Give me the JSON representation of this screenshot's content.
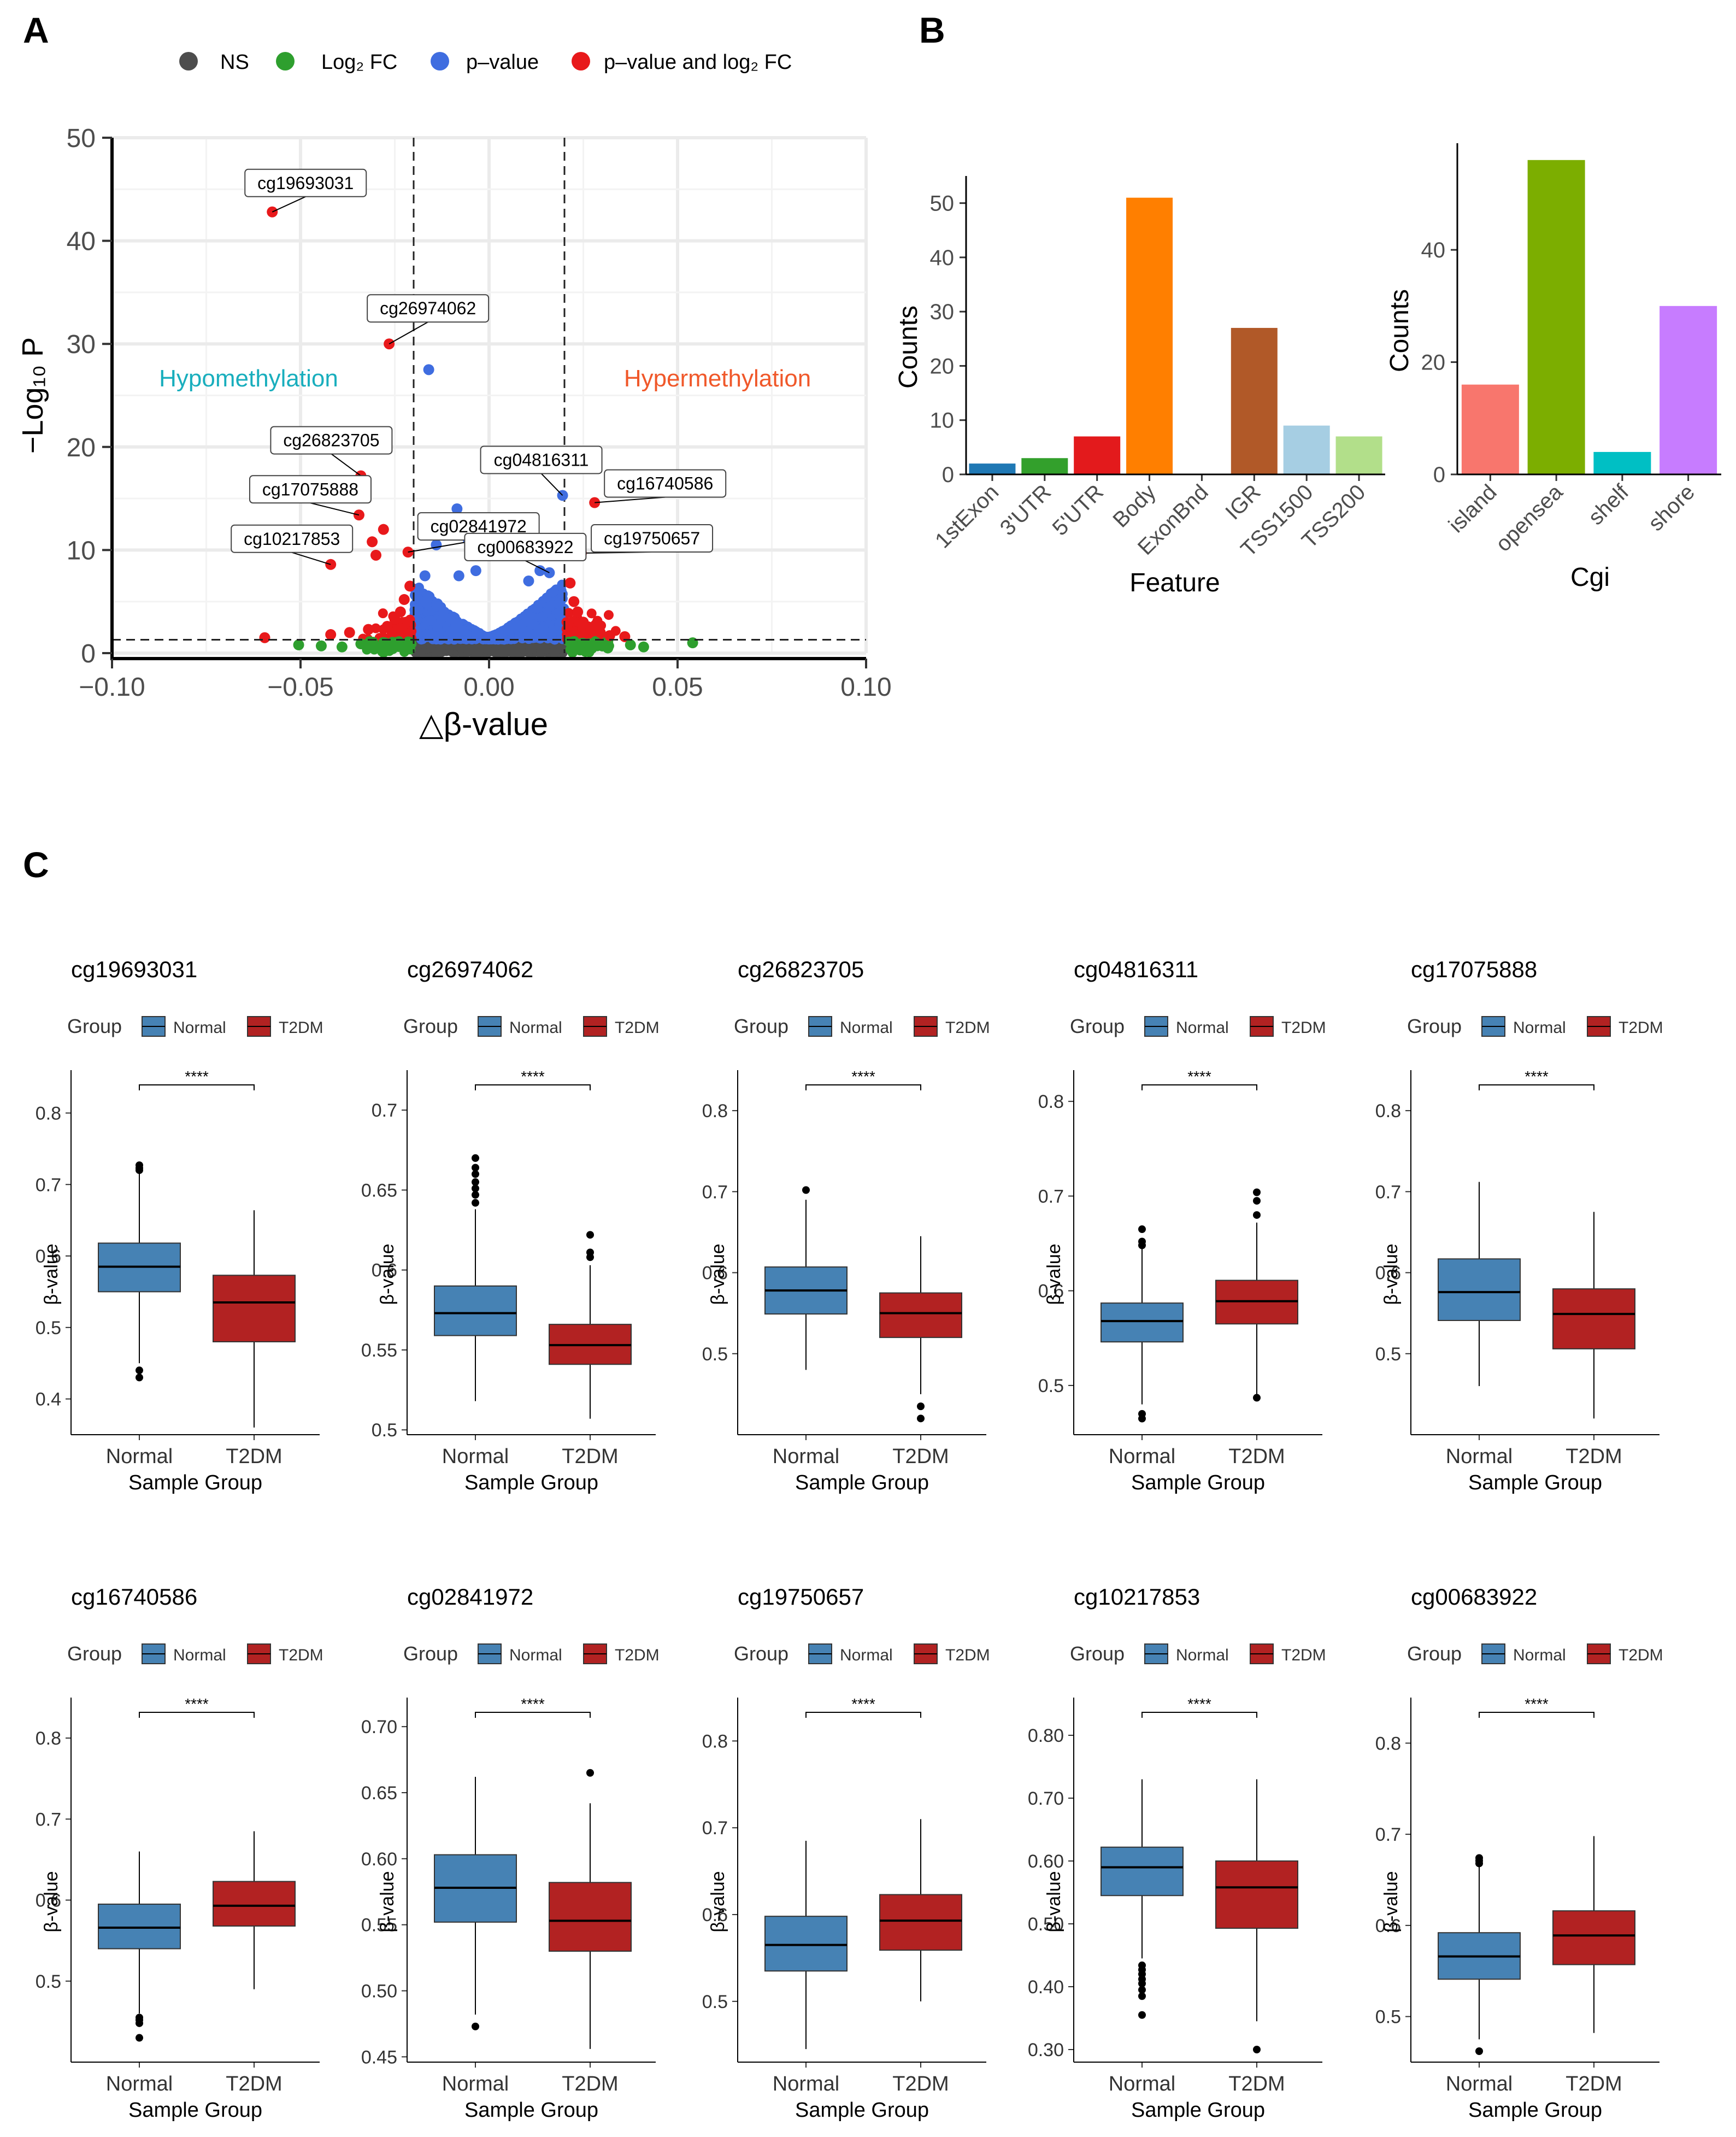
{
  "panel_letters": [
    "A",
    "B",
    "C"
  ],
  "volcano": {
    "legend": [
      "NS",
      "Log₂ FC",
      "p–value",
      "p–value and log₂ FC"
    ],
    "legend_colors": [
      "#4d4d4d",
      "#2e9f2e",
      "#3f6de0",
      "#e8191b"
    ],
    "hypo_label": "Hypomethylation",
    "hyper_label": "Hypermethylation",
    "hypo_color": "#19aebd",
    "hyper_color": "#f0582a"
  },
  "chart_data": [
    {
      "type": "scatter",
      "id": "A",
      "title": "",
      "xlabel": "△β-value",
      "ylabel": "−Log₁₀ P",
      "xlim": [
        -0.1,
        0.1
      ],
      "ylim": [
        0,
        50
      ],
      "xticks": [
        -0.1,
        -0.05,
        0.0,
        0.05,
        0.1
      ],
      "xtick_labels": [
        "−0.10",
        "−0.05",
        "0.00",
        "0.05",
        "0.10"
      ],
      "yticks": [
        0,
        10,
        20,
        30,
        40,
        50
      ],
      "cutoffs": {
        "x": [
          -0.02,
          0.02
        ],
        "y": 1.3
      },
      "labeled_points": [
        {
          "name": "cg19693031",
          "x": -0.0575,
          "y": 42.8,
          "color": "#e8191b"
        },
        {
          "name": "cg26974062",
          "x": -0.0265,
          "y": 30.0,
          "color": "#e8191b"
        },
        {
          "name": "cg26823705",
          "x": -0.034,
          "y": 17.2,
          "color": "#e8191b"
        },
        {
          "name": "cg04816311",
          "x": 0.0195,
          "y": 15.3,
          "color": "#3f6de0"
        },
        {
          "name": "cg16740586",
          "x": 0.028,
          "y": 14.6,
          "color": "#e8191b"
        },
        {
          "name": "cg17075888",
          "x": -0.0345,
          "y": 13.4,
          "color": "#e8191b"
        },
        {
          "name": "cg02841972",
          "x": -0.0215,
          "y": 9.8,
          "color": "#e8191b"
        },
        {
          "name": "cg19750657",
          "x": 0.0245,
          "y": 9.7,
          "color": "#e8191b"
        },
        {
          "name": "cg10217853",
          "x": -0.042,
          "y": 8.6,
          "color": "#e8191b"
        },
        {
          "name": "cg00683922",
          "x": 0.016,
          "y": 7.8,
          "color": "#3f6de0"
        }
      ],
      "other_points": [
        {
          "x": -0.0085,
          "y": 14.0,
          "color": "#3f6de0"
        },
        {
          "x": 0.0075,
          "y": 13.0,
          "color": "#3f6de0"
        },
        {
          "x": -0.016,
          "y": 27.5,
          "color": "#3f6de0"
        },
        {
          "x": -0.014,
          "y": 10.5,
          "color": "#3f6de0"
        },
        {
          "x": -0.0055,
          "y": 11.0,
          "color": "#3f6de0"
        },
        {
          "x": 0.007,
          "y": 10.0,
          "color": "#3f6de0"
        },
        {
          "x": 0.0135,
          "y": 8.0,
          "color": "#3f6de0"
        },
        {
          "x": -0.008,
          "y": 7.5,
          "color": "#3f6de0"
        },
        {
          "x": -0.0035,
          "y": 8.0,
          "color": "#3f6de0"
        },
        {
          "x": -0.017,
          "y": 7.5,
          "color": "#3f6de0"
        },
        {
          "x": 0.0105,
          "y": 7.0,
          "color": "#3f6de0"
        },
        {
          "x": -0.0595,
          "y": 1.5,
          "color": "#e8191b"
        },
        {
          "x": -0.028,
          "y": 12.0,
          "color": "#e8191b"
        },
        {
          "x": -0.031,
          "y": 10.8,
          "color": "#e8191b"
        },
        {
          "x": -0.03,
          "y": 9.5,
          "color": "#e8191b"
        },
        {
          "x": -0.027,
          "y": 2.6,
          "color": "#e8191b"
        },
        {
          "x": -0.025,
          "y": 3.3,
          "color": "#e8191b"
        },
        {
          "x": -0.0235,
          "y": 4.0,
          "color": "#e8191b"
        },
        {
          "x": -0.0225,
          "y": 5.2,
          "color": "#e8191b"
        },
        {
          "x": -0.021,
          "y": 6.5,
          "color": "#e8191b"
        },
        {
          "x": -0.022,
          "y": 3.0,
          "color": "#e8191b"
        },
        {
          "x": -0.0235,
          "y": 2.4,
          "color": "#e8191b"
        },
        {
          "x": -0.032,
          "y": 2.3,
          "color": "#e8191b"
        },
        {
          "x": -0.037,
          "y": 2.0,
          "color": "#e8191b"
        },
        {
          "x": -0.042,
          "y": 1.8,
          "color": "#e8191b"
        },
        {
          "x": 0.0215,
          "y": 6.8,
          "color": "#e8191b"
        },
        {
          "x": 0.0225,
          "y": 5.0,
          "color": "#e8191b"
        },
        {
          "x": 0.0235,
          "y": 4.0,
          "color": "#e8191b"
        },
        {
          "x": 0.025,
          "y": 3.0,
          "color": "#e8191b"
        },
        {
          "x": 0.027,
          "y": 2.3,
          "color": "#e8191b"
        },
        {
          "x": 0.0295,
          "y": 2.0,
          "color": "#e8191b"
        },
        {
          "x": 0.032,
          "y": 1.7,
          "color": "#e8191b"
        },
        {
          "x": 0.036,
          "y": 1.6,
          "color": "#e8191b"
        },
        {
          "x": -0.0505,
          "y": 0.8,
          "color": "#2e9f2e"
        },
        {
          "x": -0.0445,
          "y": 0.7,
          "color": "#2e9f2e"
        },
        {
          "x": -0.039,
          "y": 0.6,
          "color": "#2e9f2e"
        },
        {
          "x": -0.034,
          "y": 0.9,
          "color": "#2e9f2e"
        },
        {
          "x": -0.029,
          "y": 0.6,
          "color": "#2e9f2e"
        },
        {
          "x": -0.025,
          "y": 0.8,
          "color": "#2e9f2e"
        },
        {
          "x": -0.022,
          "y": 0.5,
          "color": "#2e9f2e"
        },
        {
          "x": 0.0225,
          "y": 0.6,
          "color": "#2e9f2e"
        },
        {
          "x": 0.0265,
          "y": 0.9,
          "color": "#2e9f2e"
        },
        {
          "x": 0.0315,
          "y": 0.5,
          "color": "#2e9f2e"
        },
        {
          "x": 0.0375,
          "y": 0.8,
          "color": "#2e9f2e"
        },
        {
          "x": 0.041,
          "y": 0.6,
          "color": "#2e9f2e"
        },
        {
          "x": 0.054,
          "y": 1.0,
          "color": "#2e9f2e"
        }
      ]
    },
    {
      "type": "bar",
      "id": "B1",
      "xlabel": "Feature",
      "ylabel": "Counts",
      "ylim": [
        0,
        55
      ],
      "yticks": [
        0,
        10,
        20,
        30,
        40,
        50
      ],
      "categories": [
        "1stExon",
        "3'UTR",
        "5'UTR",
        "Body",
        "ExonBnd",
        "IGR",
        "TSS1500",
        "TSS200"
      ],
      "values": [
        2,
        3,
        7,
        51,
        0,
        27,
        9,
        7
      ],
      "colors": [
        "#1f78b4",
        "#33a02c",
        "#e31a1c",
        "#ff7f00",
        "#6a3d9a",
        "#b15928",
        "#a6cee3",
        "#b2df8a"
      ]
    },
    {
      "type": "bar",
      "id": "B2",
      "xlabel": "Cgi",
      "ylabel": "Counts",
      "ylim": [
        0,
        59
      ],
      "yticks": [
        0,
        20,
        40
      ],
      "categories": [
        "island",
        "opensea",
        "shelf",
        "shore"
      ],
      "values": [
        16,
        56,
        4,
        30
      ],
      "colors": [
        "#f8766d",
        "#7cae00",
        "#00bfc4",
        "#c77cff"
      ]
    },
    {
      "type": "box",
      "id": "C",
      "group_title": "Group",
      "groups": [
        "Normal",
        "T2DM"
      ],
      "group_colors": [
        "#4682b4",
        "#b22222"
      ],
      "xlabel": "Sample Group",
      "ylabel": "β-value",
      "significance": "****",
      "panels": [
        {
          "title": "cg19693031",
          "ylim": [
            0.35,
            0.86
          ],
          "yticks": [
            0.4,
            0.5,
            0.6,
            0.7,
            0.8
          ],
          "boxes": [
            {
              "q1": 0.55,
              "median": 0.585,
              "q3": 0.618,
              "wlo": 0.45,
              "whi": 0.718,
              "outliers": [
                0.43,
                0.44,
                0.72,
                0.723,
                0.727
              ]
            },
            {
              "q1": 0.48,
              "median": 0.535,
              "q3": 0.573,
              "wlo": 0.36,
              "whi": 0.664,
              "outliers": []
            }
          ]
        },
        {
          "title": "cg26974062",
          "ylim": [
            0.497,
            0.725
          ],
          "yticks": [
            0.5,
            0.55,
            0.6,
            0.65,
            0.7
          ],
          "boxes": [
            {
              "q1": 0.559,
              "median": 0.573,
              "q3": 0.59,
              "wlo": 0.518,
              "whi": 0.638,
              "outliers": [
                0.642,
                0.647,
                0.651,
                0.655,
                0.66,
                0.664,
                0.67
              ]
            },
            {
              "q1": 0.541,
              "median": 0.553,
              "q3": 0.566,
              "wlo": 0.507,
              "whi": 0.603,
              "outliers": [
                0.608,
                0.611,
                0.622
              ]
            }
          ]
        },
        {
          "title": "cg26823705",
          "ylim": [
            0.4,
            0.85
          ],
          "yticks": [
            0.5,
            0.6,
            0.7,
            0.8
          ],
          "boxes": [
            {
              "q1": 0.549,
              "median": 0.578,
              "q3": 0.607,
              "wlo": 0.48,
              "whi": 0.69,
              "outliers": [
                0.702
              ]
            },
            {
              "q1": 0.52,
              "median": 0.55,
              "q3": 0.575,
              "wlo": 0.45,
              "whi": 0.645,
              "outliers": [
                0.42,
                0.435
              ]
            }
          ]
        },
        {
          "title": "cg04816311",
          "ylim": [
            0.448,
            0.833
          ],
          "yticks": [
            0.5,
            0.6,
            0.7,
            0.8
          ],
          "boxes": [
            {
              "q1": 0.546,
              "median": 0.568,
              "q3": 0.587,
              "wlo": 0.48,
              "whi": 0.645,
              "outliers": [
                0.465,
                0.47,
                0.648,
                0.652,
                0.665
              ]
            },
            {
              "q1": 0.565,
              "median": 0.589,
              "q3": 0.611,
              "wlo": 0.49,
              "whi": 0.672,
              "outliers": [
                0.487,
                0.68,
                0.695,
                0.704
              ]
            }
          ]
        },
        {
          "title": "cg17075888",
          "ylim": [
            0.4,
            0.85
          ],
          "yticks": [
            0.5,
            0.6,
            0.7,
            0.8
          ],
          "boxes": [
            {
              "q1": 0.541,
              "median": 0.576,
              "q3": 0.617,
              "wlo": 0.46,
              "whi": 0.712,
              "outliers": []
            },
            {
              "q1": 0.506,
              "median": 0.549,
              "q3": 0.58,
              "wlo": 0.42,
              "whi": 0.675,
              "outliers": []
            }
          ]
        },
        {
          "title": "cg16740586",
          "ylim": [
            0.4,
            0.85
          ],
          "yticks": [
            0.5,
            0.6,
            0.7,
            0.8
          ],
          "boxes": [
            {
              "q1": 0.54,
              "median": 0.566,
              "q3": 0.595,
              "wlo": 0.46,
              "whi": 0.66,
              "outliers": [
                0.43,
                0.448,
                0.452,
                0.455
              ]
            },
            {
              "q1": 0.568,
              "median": 0.593,
              "q3": 0.623,
              "wlo": 0.49,
              "whi": 0.685,
              "outliers": []
            }
          ]
        },
        {
          "title": "cg02841972",
          "ylim": [
            0.446,
            0.722
          ],
          "yticks": [
            0.45,
            0.5,
            0.55,
            0.6,
            0.65,
            0.7
          ],
          "boxes": [
            {
              "q1": 0.552,
              "median": 0.578,
              "q3": 0.603,
              "wlo": 0.482,
              "whi": 0.662,
              "outliers": [
                0.473
              ]
            },
            {
              "q1": 0.53,
              "median": 0.553,
              "q3": 0.582,
              "wlo": 0.456,
              "whi": 0.642,
              "outliers": [
                0.665
              ]
            }
          ]
        },
        {
          "title": "cg19750657",
          "ylim": [
            0.43,
            0.85
          ],
          "yticks": [
            0.5,
            0.6,
            0.7,
            0.8
          ],
          "boxes": [
            {
              "q1": 0.535,
              "median": 0.565,
              "q3": 0.598,
              "wlo": 0.445,
              "whi": 0.685,
              "outliers": []
            },
            {
              "q1": 0.559,
              "median": 0.593,
              "q3": 0.623,
              "wlo": 0.5,
              "whi": 0.71,
              "outliers": []
            }
          ]
        },
        {
          "title": "cg10217853",
          "ylim": [
            0.28,
            0.86
          ],
          "yticks": [
            0.3,
            0.4,
            0.5,
            0.6,
            0.7,
            0.8
          ],
          "boxes": [
            {
              "q1": 0.545,
              "median": 0.59,
              "q3": 0.622,
              "wlo": 0.445,
              "whi": 0.73,
              "outliers": [
                0.355,
                0.385,
                0.395,
                0.405,
                0.412,
                0.42,
                0.427,
                0.434
              ]
            },
            {
              "q1": 0.493,
              "median": 0.558,
              "q3": 0.6,
              "wlo": 0.345,
              "whi": 0.73,
              "outliers": [
                0.3
              ]
            }
          ]
        },
        {
          "title": "cg00683922",
          "ylim": [
            0.45,
            0.85
          ],
          "yticks": [
            0.5,
            0.6,
            0.7,
            0.8
          ],
          "boxes": [
            {
              "q1": 0.541,
              "median": 0.566,
              "q3": 0.592,
              "wlo": 0.475,
              "whi": 0.665,
              "outliers": [
                0.462,
                0.668,
                0.671,
                0.674
              ]
            },
            {
              "q1": 0.557,
              "median": 0.589,
              "q3": 0.616,
              "wlo": 0.482,
              "whi": 0.698,
              "outliers": []
            }
          ]
        }
      ]
    }
  ]
}
